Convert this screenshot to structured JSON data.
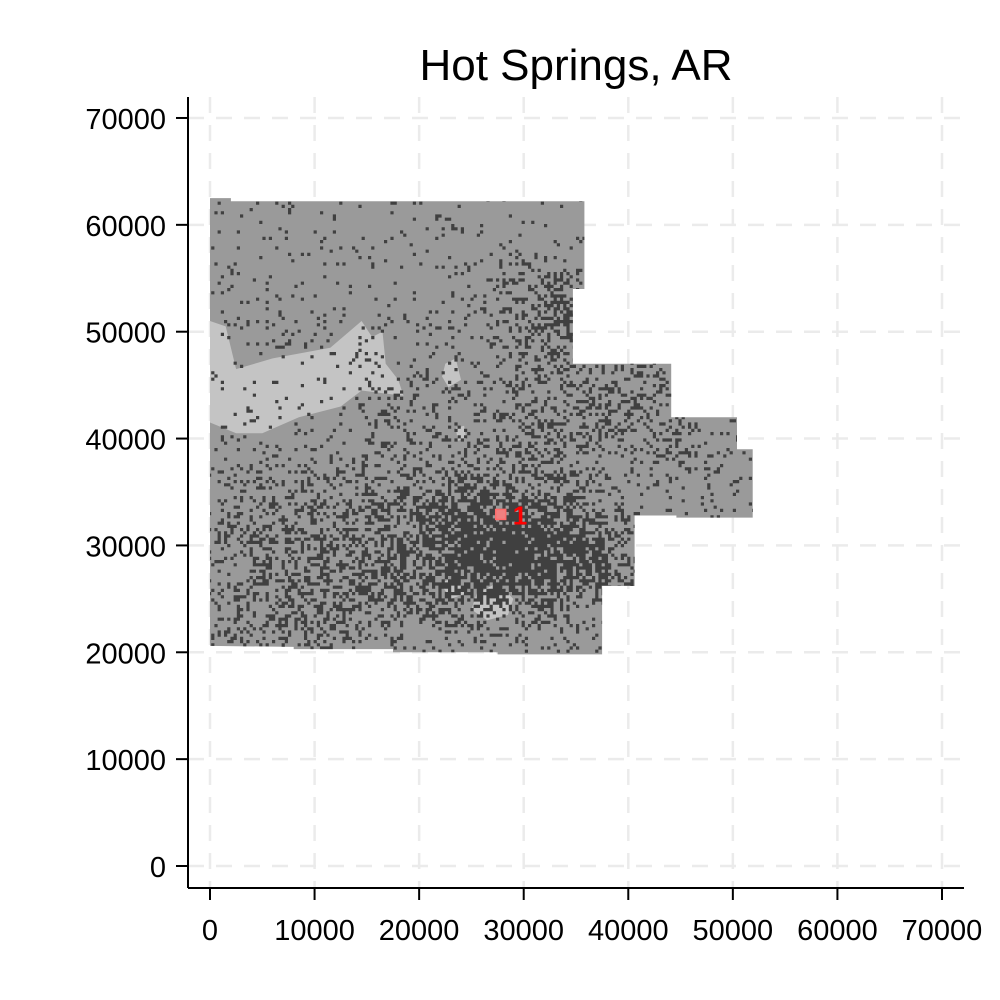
{
  "chart_data": {
    "type": "raster-map",
    "title": "Hot Springs, AR",
    "xlabel": "",
    "ylabel": "",
    "xlim": [
      -2000,
      72000
    ],
    "ylim": [
      -2000,
      72000
    ],
    "x_ticks": [
      0,
      10000,
      20000,
      30000,
      40000,
      50000,
      60000,
      70000
    ],
    "y_ticks": [
      0,
      10000,
      20000,
      30000,
      40000,
      50000,
      60000,
      70000
    ],
    "x_tick_labels": [
      "0",
      "10000",
      "20000",
      "30000",
      "40000",
      "50000",
      "60000",
      "70000"
    ],
    "y_tick_labels": [
      "0",
      "10000",
      "20000",
      "30000",
      "40000",
      "50000",
      "60000",
      "70000"
    ],
    "grid": true,
    "grid_style": "dashed",
    "colors": {
      "land": "#9a9a9a",
      "light_area": "#c4c4c4",
      "dark_cells": "#404040",
      "marker": "#ff0000",
      "marker_fill": "#f08080",
      "grid": "#ebebeb"
    },
    "region_outline": [
      [
        0,
        62500
      ],
      [
        2000,
        62500
      ],
      [
        2000,
        62200
      ],
      [
        35800,
        62200
      ],
      [
        35800,
        54000
      ],
      [
        34700,
        54000
      ],
      [
        34700,
        47000
      ],
      [
        44100,
        47000
      ],
      [
        44100,
        42000
      ],
      [
        50400,
        42000
      ],
      [
        50400,
        39000
      ],
      [
        51900,
        39000
      ],
      [
        51900,
        32600
      ],
      [
        44600,
        32600
      ],
      [
        44600,
        32800
      ],
      [
        40600,
        32800
      ],
      [
        40600,
        26200
      ],
      [
        37500,
        26200
      ],
      [
        37500,
        19800
      ],
      [
        27500,
        19800
      ],
      [
        27500,
        20000
      ],
      [
        17500,
        20000
      ],
      [
        17500,
        20300
      ],
      [
        8000,
        20300
      ],
      [
        8000,
        20500
      ],
      [
        0,
        20600
      ]
    ],
    "light_areas": [
      [
        [
          0,
          51000
        ],
        [
          1500,
          50500
        ],
        [
          2500,
          46500
        ],
        [
          6000,
          47500
        ],
        [
          11500,
          48500
        ],
        [
          14500,
          51000
        ],
        [
          15500,
          49500
        ],
        [
          16500,
          50000
        ],
        [
          16800,
          47000
        ],
        [
          18000,
          45500
        ],
        [
          18500,
          44000
        ],
        [
          14500,
          44500
        ],
        [
          12500,
          43000
        ],
        [
          8500,
          42000
        ],
        [
          5000,
          40500
        ],
        [
          2500,
          40500
        ],
        [
          0,
          41500
        ]
      ],
      [
        [
          22500,
          47000
        ],
        [
          23500,
          47500
        ],
        [
          24000,
          45500
        ],
        [
          22800,
          44800
        ],
        [
          22200,
          45800
        ]
      ],
      [
        [
          23500,
          41000
        ],
        [
          24300,
          41200
        ],
        [
          24500,
          40000
        ],
        [
          23700,
          39800
        ]
      ],
      [
        [
          25500,
          25500
        ],
        [
          27500,
          26500
        ],
        [
          29000,
          25000
        ],
        [
          28500,
          23500
        ],
        [
          26500,
          23000
        ],
        [
          25000,
          24000
        ]
      ],
      [
        [
          22000,
          26500
        ],
        [
          23500,
          27000
        ],
        [
          24500,
          25500
        ],
        [
          23000,
          25000
        ]
      ]
    ],
    "dark_clusters": [
      {
        "x": 27500,
        "y": 29500,
        "sx": 4500,
        "sy": 3200,
        "n": 1400
      },
      {
        "x": 22000,
        "y": 29000,
        "sx": 7000,
        "sy": 3500,
        "n": 800
      },
      {
        "x": 13000,
        "y": 31000,
        "sx": 7500,
        "sy": 4500,
        "n": 600
      },
      {
        "x": 6000,
        "y": 29000,
        "sx": 4500,
        "sy": 5000,
        "n": 280
      },
      {
        "x": 33000,
        "y": 29000,
        "sx": 3500,
        "sy": 3500,
        "n": 500
      },
      {
        "x": 38000,
        "y": 29000,
        "sx": 2000,
        "sy": 2000,
        "n": 120
      },
      {
        "x": 32000,
        "y": 40000,
        "sx": 3500,
        "sy": 4500,
        "n": 380
      },
      {
        "x": 34000,
        "y": 51500,
        "sx": 2000,
        "sy": 2000,
        "n": 220
      },
      {
        "x": 30500,
        "y": 52500,
        "sx": 3500,
        "sy": 3500,
        "n": 200
      },
      {
        "x": 40000,
        "y": 43500,
        "sx": 3000,
        "sy": 2500,
        "n": 220
      },
      {
        "x": 46000,
        "y": 38500,
        "sx": 3500,
        "sy": 2500,
        "n": 100
      },
      {
        "x": 20000,
        "y": 42000,
        "sx": 5000,
        "sy": 3500,
        "n": 180
      },
      {
        "x": 10000,
        "y": 23500,
        "sx": 5500,
        "sy": 2000,
        "n": 260
      },
      {
        "x": 22000,
        "y": 35500,
        "sx": 6500,
        "sy": 2800,
        "n": 260
      },
      {
        "x": 18000,
        "y": 55000,
        "sx": 9000,
        "sy": 4000,
        "n": 60
      },
      {
        "x": 8000,
        "y": 50000,
        "sx": 4000,
        "sy": 2500,
        "n": 40
      }
    ],
    "markers": [
      {
        "label": "1",
        "x": 27800,
        "y": 32900
      }
    ]
  }
}
